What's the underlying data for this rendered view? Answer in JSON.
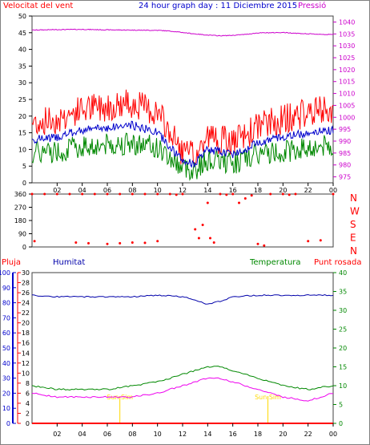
{
  "colors": {
    "wind": "#ff0000",
    "wind_avg": "#0000cc",
    "wind_min": "#008800",
    "pressure": "#cc00cc",
    "dir": "#ff0000",
    "humidity": "#0000aa",
    "temperature": "#008800",
    "dewpoint": "#ee00ee",
    "rain": "#ff0000",
    "sun": "#ffd800",
    "axis_left_bottom": "#0000cc"
  },
  "header": {
    "left": "Velocitat del vent",
    "title": "24 hour graph day : 11 Diciembre 2015",
    "right": "Pressió"
  },
  "labels": {
    "rain": "Pluja",
    "humidity": "Humitat",
    "temperature": "Temperatura",
    "dewpoint": "Punt rosada",
    "sun": "Sun Sim"
  },
  "compass": [
    "N",
    "W",
    "S",
    "E",
    "N"
  ],
  "chart_data": [
    {
      "type": "line",
      "x_ticks": [
        "02",
        "04",
        "06",
        "08",
        "10",
        "12",
        "14",
        "16",
        "18",
        "20",
        "22",
        "00"
      ],
      "y_left_ticks": [
        0,
        5,
        10,
        15,
        20,
        25,
        30,
        35,
        40,
        45,
        50
      ],
      "y_right_ticks": [
        975,
        980,
        985,
        990,
        995,
        1000,
        1005,
        1010,
        1015,
        1020,
        1025,
        1030,
        1035,
        1040
      ],
      "ylim_left": [
        0,
        50
      ],
      "ylim_right": [
        972.5,
        1042.5
      ],
      "x_hours": [
        0,
        2,
        4,
        6,
        8,
        10,
        11,
        12,
        13,
        14,
        15,
        16,
        17,
        18,
        20,
        22,
        24
      ],
      "series": [
        {
          "name": "Velocitat del vent",
          "values": [
            18,
            19,
            22,
            23,
            24,
            21,
            15,
            9,
            8,
            14,
            13,
            12,
            14,
            17,
            19,
            21,
            22
          ]
        },
        {
          "name": "Pressió",
          "values": [
            1036.6,
            1036.8,
            1036.9,
            1036.7,
            1036.6,
            1036.5,
            1036.2,
            1035.6,
            1035.0,
            1034.5,
            1034.2,
            1034.4,
            1034.8,
            1035.4,
            1035.6,
            1035.0,
            1034.7
          ]
        }
      ]
    },
    {
      "type": "scatter",
      "x_ticks": [
        "02",
        "04",
        "06",
        "08",
        "10",
        "12",
        "14",
        "16",
        "18",
        "20",
        "22",
        "00"
      ],
      "y_ticks": [
        0,
        90,
        180,
        270,
        360
      ],
      "ylim": [
        0,
        360
      ],
      "series": [
        {
          "name": "dir",
          "points": [
            [
              0,
              360
            ],
            [
              1,
              360
            ],
            [
              2,
              360
            ],
            [
              3,
              360
            ],
            [
              4,
              360
            ],
            [
              5,
              360
            ],
            [
              6,
              360
            ],
            [
              7,
              360
            ],
            [
              8,
              360
            ],
            [
              9,
              360
            ],
            [
              10,
              360
            ],
            [
              0.2,
              40
            ],
            [
              3.5,
              30
            ],
            [
              4.5,
              25
            ],
            [
              6,
              20
            ],
            [
              7,
              25
            ],
            [
              8,
              30
            ],
            [
              9,
              28
            ],
            [
              10,
              40
            ],
            [
              11,
              360
            ],
            [
              11.5,
              355
            ],
            [
              12,
              360
            ],
            [
              13,
              120
            ],
            [
              13.3,
              60
            ],
            [
              13.6,
              150
            ],
            [
              14,
              300
            ],
            [
              14.2,
              60
            ],
            [
              14.5,
              30
            ],
            [
              15,
              360
            ],
            [
              15.5,
              355
            ],
            [
              16,
              360
            ],
            [
              16.5,
              300
            ],
            [
              17,
              330
            ],
            [
              17.5,
              350
            ],
            [
              18,
              20
            ],
            [
              18.5,
              10
            ],
            [
              19,
              360
            ],
            [
              20,
              360
            ],
            [
              20.5,
              355
            ],
            [
              21,
              360
            ],
            [
              22,
              40
            ],
            [
              23,
              45
            ],
            [
              24,
              360
            ]
          ]
        }
      ]
    },
    {
      "type": "line",
      "x_ticks": [
        "02",
        "04",
        "06",
        "08",
        "10",
        "12",
        "14",
        "16",
        "18",
        "20",
        "22",
        "00"
      ],
      "y_humidity_ticks": [
        0,
        10,
        20,
        30,
        40,
        50,
        60,
        70,
        80,
        90,
        100
      ],
      "y_temp_left_ticks": [
        0,
        2,
        4,
        6,
        8,
        10,
        12,
        14,
        16,
        18,
        20,
        22,
        24,
        26,
        28,
        30
      ],
      "y_temp_right_ticks": [
        0,
        5,
        10,
        15,
        20,
        25,
        30,
        35,
        40
      ],
      "ylim_humidity": [
        0,
        100
      ],
      "ylim_temp": [
        0,
        40
      ],
      "x_hours": [
        0,
        2,
        4,
        6,
        8,
        10,
        12,
        13,
        14,
        15,
        16,
        18,
        20,
        22,
        24
      ],
      "series": [
        {
          "name": "Humitat",
          "values": [
            85,
            84,
            84,
            84,
            84,
            85,
            84,
            82,
            79,
            81,
            84,
            85,
            85,
            85,
            85
          ]
        },
        {
          "name": "Temperatura",
          "values": [
            10,
            9,
            9,
            9,
            10,
            11,
            13,
            14,
            15,
            15,
            14,
            12,
            10,
            9,
            10
          ]
        },
        {
          "name": "Punt rosada",
          "values": [
            8,
            7,
            7,
            7,
            7,
            8,
            10,
            11,
            12,
            12,
            11,
            9,
            7,
            6,
            8
          ]
        },
        {
          "name": "Pluja",
          "values": [
            0,
            0,
            0,
            0,
            0,
            0,
            0,
            0,
            0,
            0,
            0,
            0,
            0,
            0,
            0
          ]
        }
      ]
    }
  ]
}
